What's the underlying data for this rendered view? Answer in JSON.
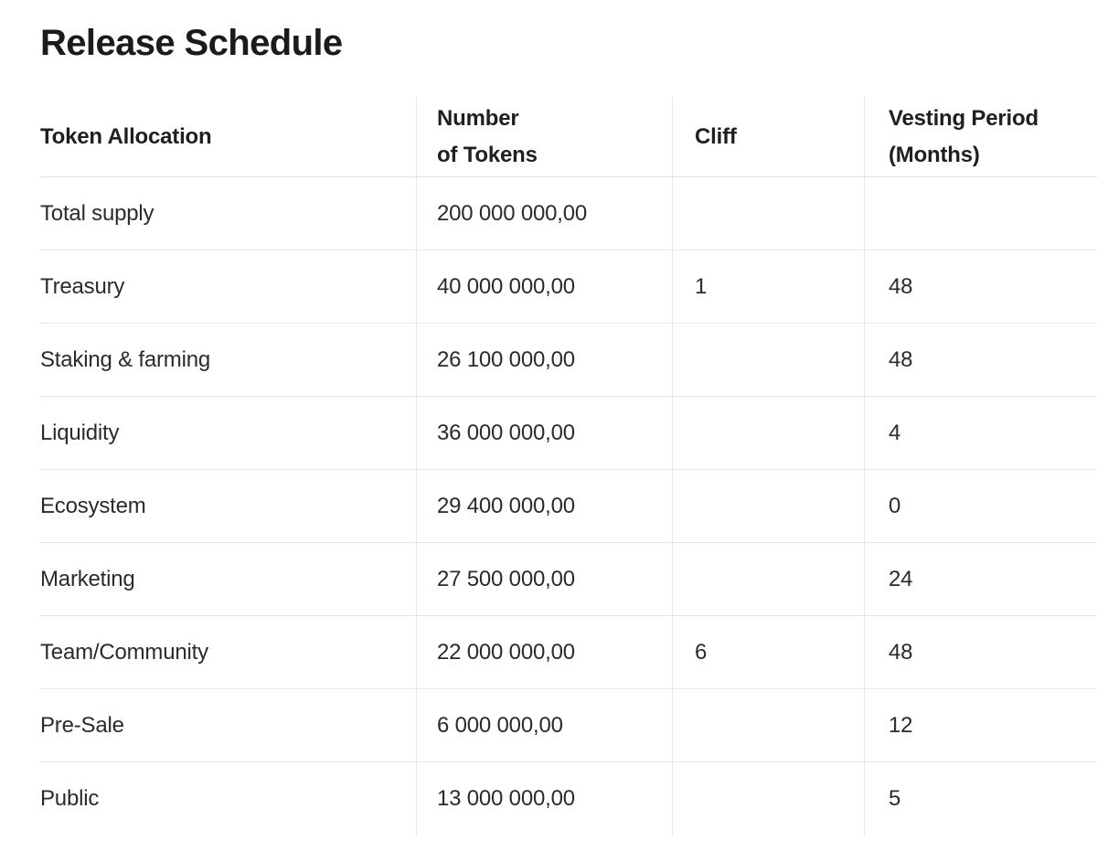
{
  "title": "Release Schedule",
  "colors": {
    "text": "#2b2b2d",
    "heading": "#1b1b1d",
    "divider": "#e6e6e6",
    "background": "#ffffff"
  },
  "table": {
    "columns": [
      "Token Allocation",
      "Number\nof Tokens",
      "Cliff",
      "Vesting Period\n(Months)"
    ],
    "rows": [
      {
        "allocation": "Total supply",
        "tokens": "200 000 000,00",
        "cliff": "",
        "vesting": ""
      },
      {
        "allocation": "Treasury",
        "tokens": "40 000 000,00",
        "cliff": "1",
        "vesting": "48"
      },
      {
        "allocation": "Staking & farming",
        "tokens": "26 100 000,00",
        "cliff": "",
        "vesting": "48"
      },
      {
        "allocation": "Liquidity",
        "tokens": "36 000 000,00",
        "cliff": "",
        "vesting": "4"
      },
      {
        "allocation": "Ecosystem",
        "tokens": "29 400 000,00",
        "cliff": "",
        "vesting": "0"
      },
      {
        "allocation": "Marketing",
        "tokens": "27 500 000,00",
        "cliff": "",
        "vesting": "24"
      },
      {
        "allocation": "Team/Community",
        "tokens": "22 000 000,00",
        "cliff": "6",
        "vesting": "48"
      },
      {
        "allocation": "Pre-Sale",
        "tokens": "6 000 000,00",
        "cliff": "",
        "vesting": "12"
      },
      {
        "allocation": "Public",
        "tokens": "13 000 000,00",
        "cliff": "",
        "vesting": "5"
      }
    ]
  }
}
